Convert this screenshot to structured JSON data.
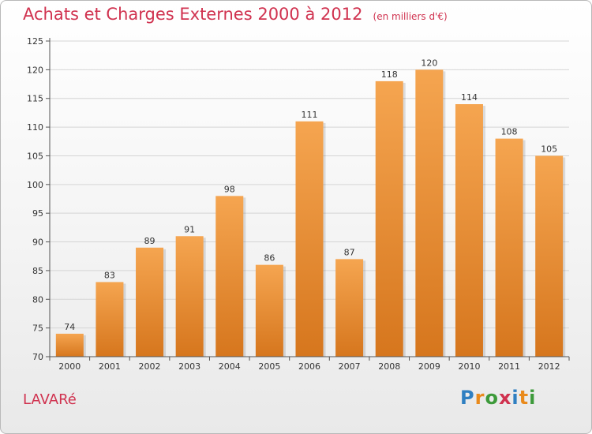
{
  "header": {
    "title": "Achats et Charges Externes 2000 à 2012",
    "unit": "(en milliers d'€)"
  },
  "footer": {
    "commune": "LAVARé",
    "logo_letters": [
      {
        "char": "P",
        "color": "#2f7fc1"
      },
      {
        "char": "r",
        "color": "#e98a1c"
      },
      {
        "char": "o",
        "color": "#3d9a3a"
      },
      {
        "char": "x",
        "color": "#d0324f"
      },
      {
        "char": "i",
        "color": "#2f7fc1"
      },
      {
        "char": "t",
        "color": "#e98a1c"
      },
      {
        "char": "i",
        "color": "#3d9a3a"
      }
    ]
  },
  "chart_data": {
    "type": "bar",
    "title": "Achats et Charges Externes 2000 à 2012",
    "subtitle": "(en milliers d'€)",
    "categories": [
      "2000",
      "2001",
      "2002",
      "2003",
      "2004",
      "2005",
      "2006",
      "2007",
      "2008",
      "2009",
      "2010",
      "2011",
      "2012"
    ],
    "values": [
      74,
      83,
      89,
      91,
      98,
      86,
      111,
      87,
      118,
      120,
      114,
      108,
      105
    ],
    "ylim": [
      70,
      125
    ],
    "yticks": [
      70,
      75,
      80,
      85,
      90,
      95,
      100,
      105,
      110,
      115,
      120,
      125
    ],
    "grid": true,
    "data_labels": true,
    "bar_color_top": "#f5a550",
    "bar_color_bottom": "#d6761d",
    "grid_color": "#d5d5d5",
    "axis_text_color": "#333333"
  }
}
